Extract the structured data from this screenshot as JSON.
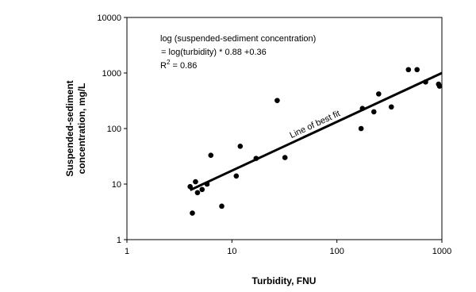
{
  "chart_data": {
    "type": "scatter",
    "xscale": "log",
    "yscale": "log",
    "xlabel": "Turbidity, FNU",
    "ylabel": [
      "Suspended-sediment",
      "concentration, mg/L"
    ],
    "xlim": [
      1,
      1000
    ],
    "ylim": [
      1,
      10000
    ],
    "xticks": [
      1,
      10,
      100,
      1000
    ],
    "yticks": [
      1,
      10,
      100,
      1000,
      10000
    ],
    "color": "#000000",
    "x": [
      4,
      4.2,
      4.5,
      4.7,
      5.2,
      5.8,
      6.3,
      8,
      11,
      12,
      17,
      27,
      32,
      170,
      175,
      225,
      250,
      330,
      480,
      580,
      700,
      930,
      950
    ],
    "values": [
      9,
      3,
      11,
      7,
      8,
      10,
      33,
      4,
      14,
      48,
      29,
      320,
      30,
      100,
      230,
      200,
      420,
      245,
      1150,
      1150,
      690,
      630,
      580
    ],
    "fit": {
      "label": "Line of best fit",
      "x": [
        4,
        1000
      ],
      "y": [
        7.8,
        1000
      ]
    },
    "equation": [
      "log (suspended-sediment concentration)",
      " = log(turbidity) * 0.88 +0.36"
    ],
    "r2": {
      "prefix": "R",
      "sup": "2",
      "suffix": " = 0.86"
    }
  }
}
